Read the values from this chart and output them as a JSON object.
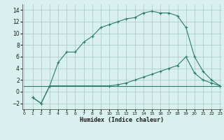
{
  "line1_x": [
    1,
    2,
    3,
    4,
    5,
    6,
    7,
    8,
    9,
    10,
    11,
    12,
    13,
    14,
    15,
    16,
    17,
    18,
    19,
    20,
    21,
    22,
    23
  ],
  "line1_y": [
    -1,
    -2,
    1,
    5,
    6.8,
    6.8,
    8.5,
    9.5,
    11.0,
    11.5,
    12.0,
    12.5,
    12.7,
    13.5,
    13.8,
    13.5,
    13.5,
    13.0,
    11.0,
    6.0,
    3.5,
    2.0,
    1.0
  ],
  "line2_x": [
    1,
    2,
    3,
    10,
    11,
    12,
    13,
    14,
    15,
    16,
    17,
    18,
    19,
    20,
    21,
    22,
    23
  ],
  "line2_y": [
    -1,
    -2,
    1,
    1.0,
    1.2,
    1.5,
    2.0,
    2.5,
    3.0,
    3.5,
    4.0,
    4.5,
    6.0,
    3.2,
    2.0,
    1.5,
    1.0
  ],
  "line3_x": [
    0,
    23
  ],
  "line3_y": [
    1.0,
    1.0
  ],
  "color": "#2d7a6e",
  "bg_color": "#d8f0ee",
  "grid_color": "#b0ccc9",
  "xlim": [
    -0.2,
    23.2
  ],
  "ylim": [
    -3,
    15
  ],
  "yticks": [
    -2,
    0,
    2,
    4,
    6,
    8,
    10,
    12,
    14
  ],
  "xticks": [
    0,
    1,
    2,
    3,
    4,
    5,
    6,
    7,
    8,
    9,
    10,
    11,
    12,
    13,
    14,
    15,
    16,
    17,
    18,
    19,
    20,
    21,
    22,
    23
  ],
  "xlabel": "Humidex (Indice chaleur)"
}
